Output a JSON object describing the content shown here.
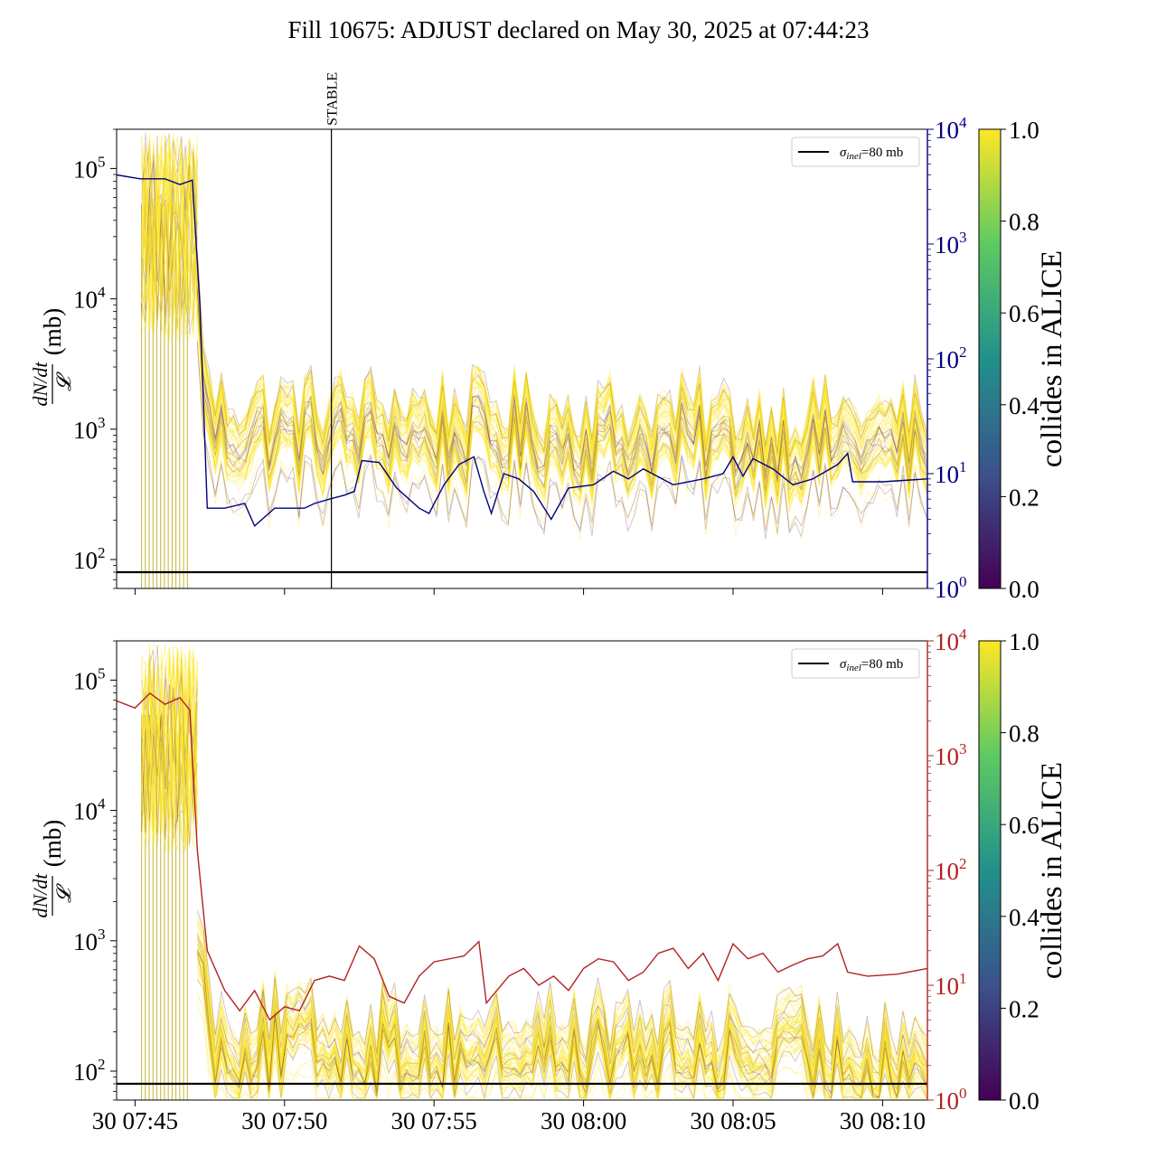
{
  "title": "Fill 10675: ADJUST declared on May 30, 2025 at 07:44:23",
  "colors": {
    "luminosity_axis_top": "#00007f",
    "luminosity_axis_bottom": "#b22222",
    "reference_line": "#000000",
    "viridis": [
      "#440154",
      "#3b528b",
      "#21918c",
      "#5ec962",
      "#fde725"
    ]
  },
  "chart_data": [
    {
      "type": "line",
      "ylabel": "dN/dt / 𝓛 (mb)",
      "ylim": [
        60,
        200000
      ],
      "yscale": "log",
      "yticks": [
        {
          "v": 100,
          "label": "10",
          "exp": "2"
        },
        {
          "v": 1000,
          "label": "10",
          "exp": "3"
        },
        {
          "v": 10000,
          "label": "10",
          "exp": "4"
        },
        {
          "v": 100000,
          "label": "10",
          "exp": "5"
        }
      ],
      "xlim": [
        "07:44:23",
        "08:11:30"
      ],
      "xticks": [
        "30 07:45",
        "30 07:50",
        "30 07:55",
        "30 08:00",
        "30 08:05",
        "30 08:10"
      ],
      "show_xtick_labels": false,
      "secondary_yscale": "log",
      "secondary_ylim": [
        1,
        10000
      ],
      "secondary_yticks": [
        {
          "v": 1,
          "label": "10",
          "exp": "0"
        },
        {
          "v": 10,
          "label": "10",
          "exp": "1"
        },
        {
          "v": 100,
          "label": "10",
          "exp": "2"
        },
        {
          "v": 1000,
          "label": "10",
          "exp": "3"
        },
        {
          "v": 10000,
          "label": "10",
          "exp": "4"
        }
      ],
      "secondary_color": "#00007f",
      "annotation": {
        "label": "STABLE",
        "time": "07:51:34"
      },
      "reference_line": {
        "value": 80,
        "legend": "σinel=80 mb",
        "legend_main": "σ",
        "legend_sub": "inel",
        "legend_rest": "=80 mb"
      },
      "legend_position": "top-right",
      "colorbar": {
        "label": "collides in ALICE",
        "range": [
          0,
          1
        ],
        "ticks": [
          "0.0",
          "0.2",
          "0.4",
          "0.6",
          "0.8",
          "1.0"
        ]
      },
      "bunch_band": {
        "pre_level": 30000,
        "post_level": 1000,
        "drop_time": "07:47:05",
        "spikes": 13
      },
      "secondary_series": [
        {
          "t": "07:44:23",
          "v": 4000
        },
        {
          "t": "07:45:10",
          "v": 3700
        },
        {
          "t": "07:46:00",
          "v": 3700
        },
        {
          "t": "07:46:30",
          "v": 3300
        },
        {
          "t": "07:46:55",
          "v": 3600
        },
        {
          "t": "07:47:10",
          "v": 300
        },
        {
          "t": "07:47:25",
          "v": 5
        },
        {
          "t": "07:48:00",
          "v": 5
        },
        {
          "t": "07:48:40",
          "v": 5.5
        },
        {
          "t": "07:49:00",
          "v": 3.5
        },
        {
          "t": "07:49:40",
          "v": 5
        },
        {
          "t": "07:50:40",
          "v": 5
        },
        {
          "t": "07:51:00",
          "v": 5.5
        },
        {
          "t": "07:51:30",
          "v": 6
        },
        {
          "t": "07:52:00",
          "v": 6.5
        },
        {
          "t": "07:52:20",
          "v": 7
        },
        {
          "t": "07:52:35",
          "v": 13
        },
        {
          "t": "07:53:10",
          "v": 12.5
        },
        {
          "t": "07:53:45",
          "v": 7.5
        },
        {
          "t": "07:54:30",
          "v": 5
        },
        {
          "t": "07:54:50",
          "v": 4.5
        },
        {
          "t": "07:55:20",
          "v": 8
        },
        {
          "t": "07:55:50",
          "v": 12
        },
        {
          "t": "07:56:20",
          "v": 14
        },
        {
          "t": "07:56:40",
          "v": 7
        },
        {
          "t": "07:56:55",
          "v": 4.5
        },
        {
          "t": "07:57:20",
          "v": 10
        },
        {
          "t": "07:57:50",
          "v": 9
        },
        {
          "t": "07:58:20",
          "v": 7
        },
        {
          "t": "07:58:55",
          "v": 4
        },
        {
          "t": "07:59:30",
          "v": 7.5
        },
        {
          "t": "08:00:20",
          "v": 8
        },
        {
          "t": "08:01:00",
          "v": 10.5
        },
        {
          "t": "08:01:30",
          "v": 9
        },
        {
          "t": "08:02:00",
          "v": 11
        },
        {
          "t": "08:03:00",
          "v": 8
        },
        {
          "t": "08:04:00",
          "v": 9
        },
        {
          "t": "08:04:40",
          "v": 10
        },
        {
          "t": "08:05:00",
          "v": 14
        },
        {
          "t": "08:05:20",
          "v": 9.5
        },
        {
          "t": "08:05:40",
          "v": 13.5
        },
        {
          "t": "08:06:20",
          "v": 11
        },
        {
          "t": "08:07:00",
          "v": 8
        },
        {
          "t": "08:07:40",
          "v": 9
        },
        {
          "t": "08:08:30",
          "v": 12
        },
        {
          "t": "08:08:50",
          "v": 15
        },
        {
          "t": "08:09:00",
          "v": 8.5
        },
        {
          "t": "08:10:00",
          "v": 8.5
        },
        {
          "t": "08:11:30",
          "v": 9
        }
      ]
    },
    {
      "type": "line",
      "ylabel": "dN/dt / 𝓛 (mb)",
      "ylim": [
        60,
        200000
      ],
      "yscale": "log",
      "yticks": [
        {
          "v": 100,
          "label": "10",
          "exp": "2"
        },
        {
          "v": 1000,
          "label": "10",
          "exp": "3"
        },
        {
          "v": 10000,
          "label": "10",
          "exp": "4"
        },
        {
          "v": 100000,
          "label": "10",
          "exp": "5"
        }
      ],
      "xlim": [
        "07:44:23",
        "08:11:30"
      ],
      "xticks": [
        "30 07:45",
        "30 07:50",
        "30 07:55",
        "30 08:00",
        "30 08:05",
        "30 08:10"
      ],
      "show_xtick_labels": true,
      "secondary_yscale": "log",
      "secondary_ylim": [
        1,
        10000
      ],
      "secondary_yticks": [
        {
          "v": 1,
          "label": "10",
          "exp": "0"
        },
        {
          "v": 10,
          "label": "10",
          "exp": "1"
        },
        {
          "v": 100,
          "label": "10",
          "exp": "2"
        },
        {
          "v": 1000,
          "label": "10",
          "exp": "3"
        },
        {
          "v": 10000,
          "label": "10",
          "exp": "4"
        }
      ],
      "secondary_color": "#b22222",
      "reference_line": {
        "value": 80,
        "legend": "σinel=80 mb",
        "legend_main": "σ",
        "legend_sub": "inel",
        "legend_rest": "=80 mb"
      },
      "legend_position": "top-right",
      "colorbar": {
        "label": "collides in ALICE",
        "range": [
          0,
          1
        ],
        "ticks": [
          "0.0",
          "0.2",
          "0.4",
          "0.6",
          "0.8",
          "1.0"
        ]
      },
      "bunch_band": {
        "pre_level": 30000,
        "post_level": 180,
        "drop_time": "07:47:05",
        "spikes": 13
      },
      "secondary_series": [
        {
          "t": "07:44:23",
          "v": 3000
        },
        {
          "t": "07:45:00",
          "v": 2600
        },
        {
          "t": "07:45:30",
          "v": 3500
        },
        {
          "t": "07:46:00",
          "v": 2800
        },
        {
          "t": "07:46:30",
          "v": 3200
        },
        {
          "t": "07:46:50",
          "v": 2500
        },
        {
          "t": "07:47:05",
          "v": 150
        },
        {
          "t": "07:47:25",
          "v": 20
        },
        {
          "t": "07:48:00",
          "v": 9
        },
        {
          "t": "07:48:30",
          "v": 6
        },
        {
          "t": "07:49:00",
          "v": 9
        },
        {
          "t": "07:49:30",
          "v": 5
        },
        {
          "t": "07:50:00",
          "v": 6.5
        },
        {
          "t": "07:50:30",
          "v": 6
        },
        {
          "t": "07:51:00",
          "v": 11
        },
        {
          "t": "07:51:30",
          "v": 12
        },
        {
          "t": "07:52:00",
          "v": 11
        },
        {
          "t": "07:52:30",
          "v": 22
        },
        {
          "t": "07:53:00",
          "v": 17
        },
        {
          "t": "07:53:30",
          "v": 8
        },
        {
          "t": "07:54:00",
          "v": 7
        },
        {
          "t": "07:54:30",
          "v": 12
        },
        {
          "t": "07:55:00",
          "v": 16
        },
        {
          "t": "07:56:00",
          "v": 18
        },
        {
          "t": "07:56:30",
          "v": 24
        },
        {
          "t": "07:56:45",
          "v": 7
        },
        {
          "t": "07:57:30",
          "v": 12
        },
        {
          "t": "07:58:00",
          "v": 14
        },
        {
          "t": "07:58:30",
          "v": 10
        },
        {
          "t": "07:59:00",
          "v": 12
        },
        {
          "t": "07:59:30",
          "v": 9
        },
        {
          "t": "08:00:00",
          "v": 14
        },
        {
          "t": "08:00:30",
          "v": 17
        },
        {
          "t": "08:01:00",
          "v": 16
        },
        {
          "t": "08:01:30",
          "v": 11
        },
        {
          "t": "08:02:00",
          "v": 13
        },
        {
          "t": "08:02:30",
          "v": 19
        },
        {
          "t": "08:03:00",
          "v": 21
        },
        {
          "t": "08:03:30",
          "v": 14
        },
        {
          "t": "08:04:00",
          "v": 19
        },
        {
          "t": "08:04:30",
          "v": 11
        },
        {
          "t": "08:05:00",
          "v": 23
        },
        {
          "t": "08:05:30",
          "v": 17
        },
        {
          "t": "08:06:00",
          "v": 19
        },
        {
          "t": "08:06:30",
          "v": 13
        },
        {
          "t": "08:07:00",
          "v": 15
        },
        {
          "t": "08:07:30",
          "v": 17
        },
        {
          "t": "08:08:00",
          "v": 18
        },
        {
          "t": "08:08:30",
          "v": 23
        },
        {
          "t": "08:08:50",
          "v": 13
        },
        {
          "t": "08:09:30",
          "v": 12
        },
        {
          "t": "08:10:30",
          "v": 12.5
        },
        {
          "t": "08:11:30",
          "v": 14
        }
      ]
    }
  ]
}
